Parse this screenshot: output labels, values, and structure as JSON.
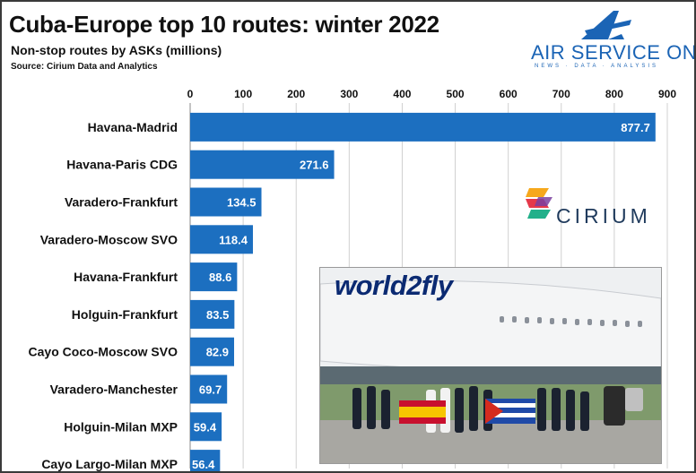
{
  "header": {
    "title": "Cuba-Europe top 10 routes: winter 2022",
    "subtitle": "Non-stop routes by ASKs (millions)",
    "source": "Source: Cirium Data and Analytics"
  },
  "brand": {
    "name": "AIR SERVICE ONE",
    "tagline": "NEWS · DATA · ANALYSIS",
    "color": "#1b64b5",
    "icon": "air-service-one-logo-icon"
  },
  "cirium": {
    "name": "CIRIUM",
    "icon": "cirium-logo-icon"
  },
  "photo": {
    "aircraft_text": "world2fly",
    "subject": "airbus-a350-crew-photo-icon"
  },
  "chart_data": {
    "type": "bar",
    "orientation": "horizontal",
    "categories": [
      "Havana-Madrid",
      "Havana-Paris CDG",
      "Varadero-Frankfurt",
      "Varadero-Moscow SVO",
      "Havana-Frankfurt",
      "Holguin-Frankfurt",
      "Cayo Coco-Moscow SVO",
      "Varadero-Manchester",
      "Holguin-Milan MXP",
      "Cayo Largo-Milan MXP"
    ],
    "values": [
      877.7,
      271.6,
      134.5,
      118.4,
      88.6,
      83.5,
      82.9,
      69.7,
      59.4,
      56.4
    ],
    "value_labels": [
      "877.7",
      "271.6",
      "134.5",
      "118.4",
      "88.6",
      "83.5",
      "82.9",
      "69.7",
      "59.4",
      "56.4"
    ],
    "xticks": [
      "0",
      "100",
      "200",
      "300",
      "400",
      "500",
      "600",
      "700",
      "800",
      "900"
    ],
    "xlim": [
      0,
      900
    ],
    "title": "Cuba-Europe top 10 routes: winter 2022",
    "xlabel": "",
    "ylabel": "",
    "grid": true,
    "axis_position": "top",
    "bar_color": "#1c6fc0",
    "grid_color": "#d0d0d0"
  }
}
